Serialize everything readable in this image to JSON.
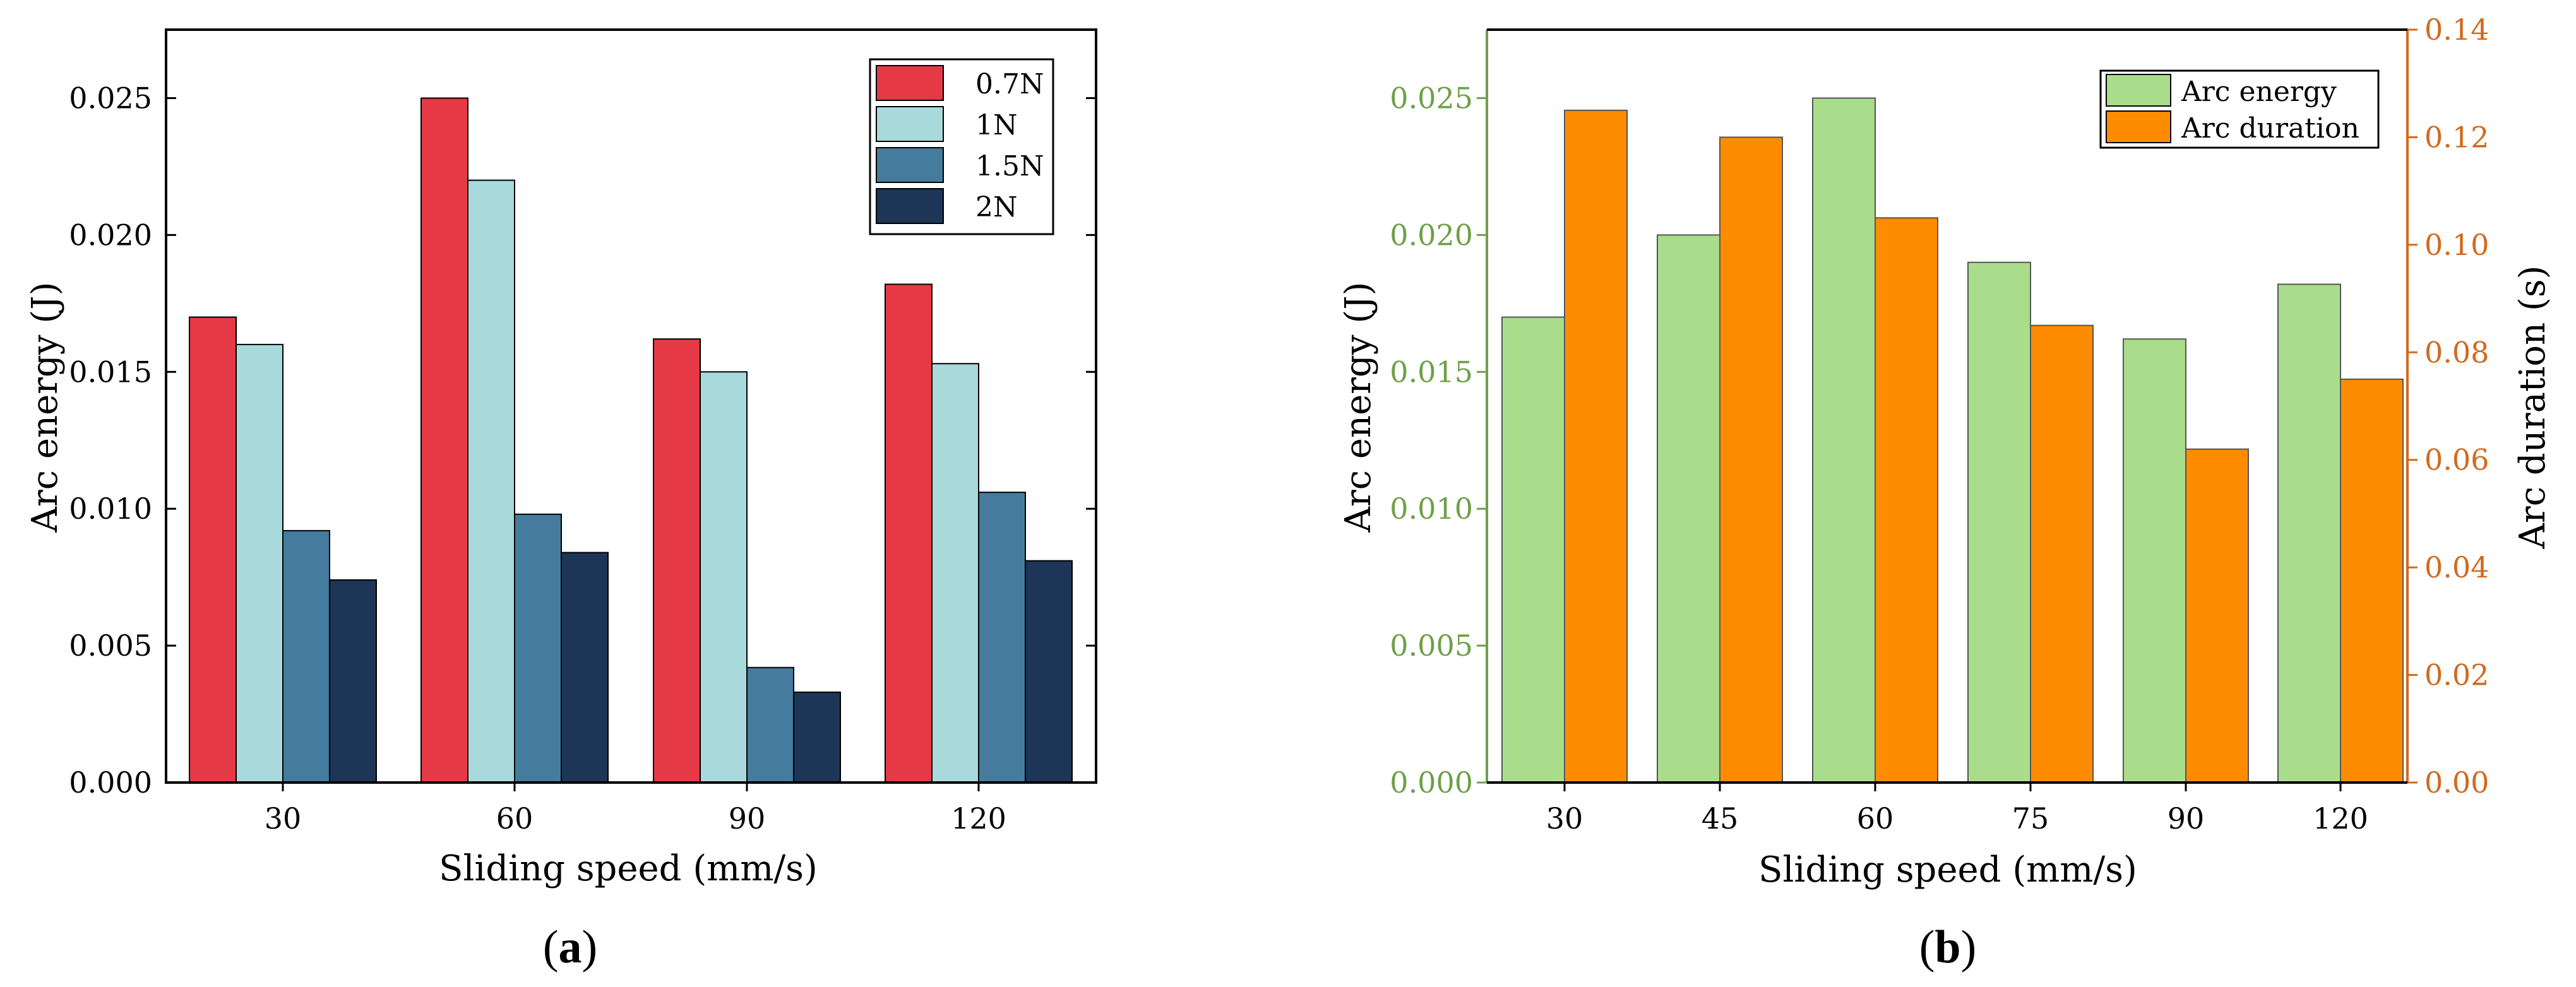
{
  "chart_data": [
    {
      "type": "bar",
      "panel_label": "a",
      "xlabel": "Sliding speed (mm/s)",
      "ylabel": "Arc energy (J)",
      "categories": [
        "30",
        "60",
        "90",
        "120"
      ],
      "ylim": [
        0,
        0.0275
      ],
      "yticks": [
        "0.000",
        "0.005",
        "0.010",
        "0.015",
        "0.020",
        "0.025"
      ],
      "legend_position": "top-right",
      "series": [
        {
          "name": "0.7N",
          "color": "#e63946",
          "values": [
            0.017,
            0.025,
            0.0162,
            0.0182
          ]
        },
        {
          "name": "1N",
          "color": "#a8dadc",
          "values": [
            0.016,
            0.022,
            0.015,
            0.0153
          ]
        },
        {
          "name": "1.5N",
          "color": "#457b9d",
          "values": [
            0.0092,
            0.0098,
            0.0042,
            0.0106
          ]
        },
        {
          "name": "2N",
          "color": "#1d3557",
          "values": [
            0.0074,
            0.0084,
            0.0033,
            0.0081
          ]
        }
      ]
    },
    {
      "type": "bar",
      "panel_label": "b",
      "xlabel": "Sliding speed (mm/s)",
      "ylabel": "Arc energy (J)",
      "ylabel_right": "Arc duration (s)",
      "categories": [
        "30",
        "45",
        "60",
        "75",
        "90",
        "120"
      ],
      "ylim": [
        0,
        0.0275
      ],
      "ylim_right": [
        0,
        0.14
      ],
      "yticks": [
        "0.000",
        "0.005",
        "0.010",
        "0.015",
        "0.020",
        "0.025"
      ],
      "yticks_right": [
        "0.00",
        "0.02",
        "0.04",
        "0.06",
        "0.08",
        "0.10",
        "0.12",
        "0.14"
      ],
      "left_axis_color": "#6ea048",
      "right_axis_color": "#d2691e",
      "legend_position": "top-right",
      "series": [
        {
          "name": "Arc energy",
          "axis": "left",
          "color": "#a9dd8c",
          "values": [
            0.017,
            0.02,
            0.025,
            0.019,
            0.0162,
            0.0182
          ]
        },
        {
          "name": "Arc duration",
          "axis": "right",
          "color": "#ff8c00",
          "values": [
            0.125,
            0.12,
            0.105,
            0.085,
            0.062,
            0.075
          ]
        }
      ]
    }
  ]
}
